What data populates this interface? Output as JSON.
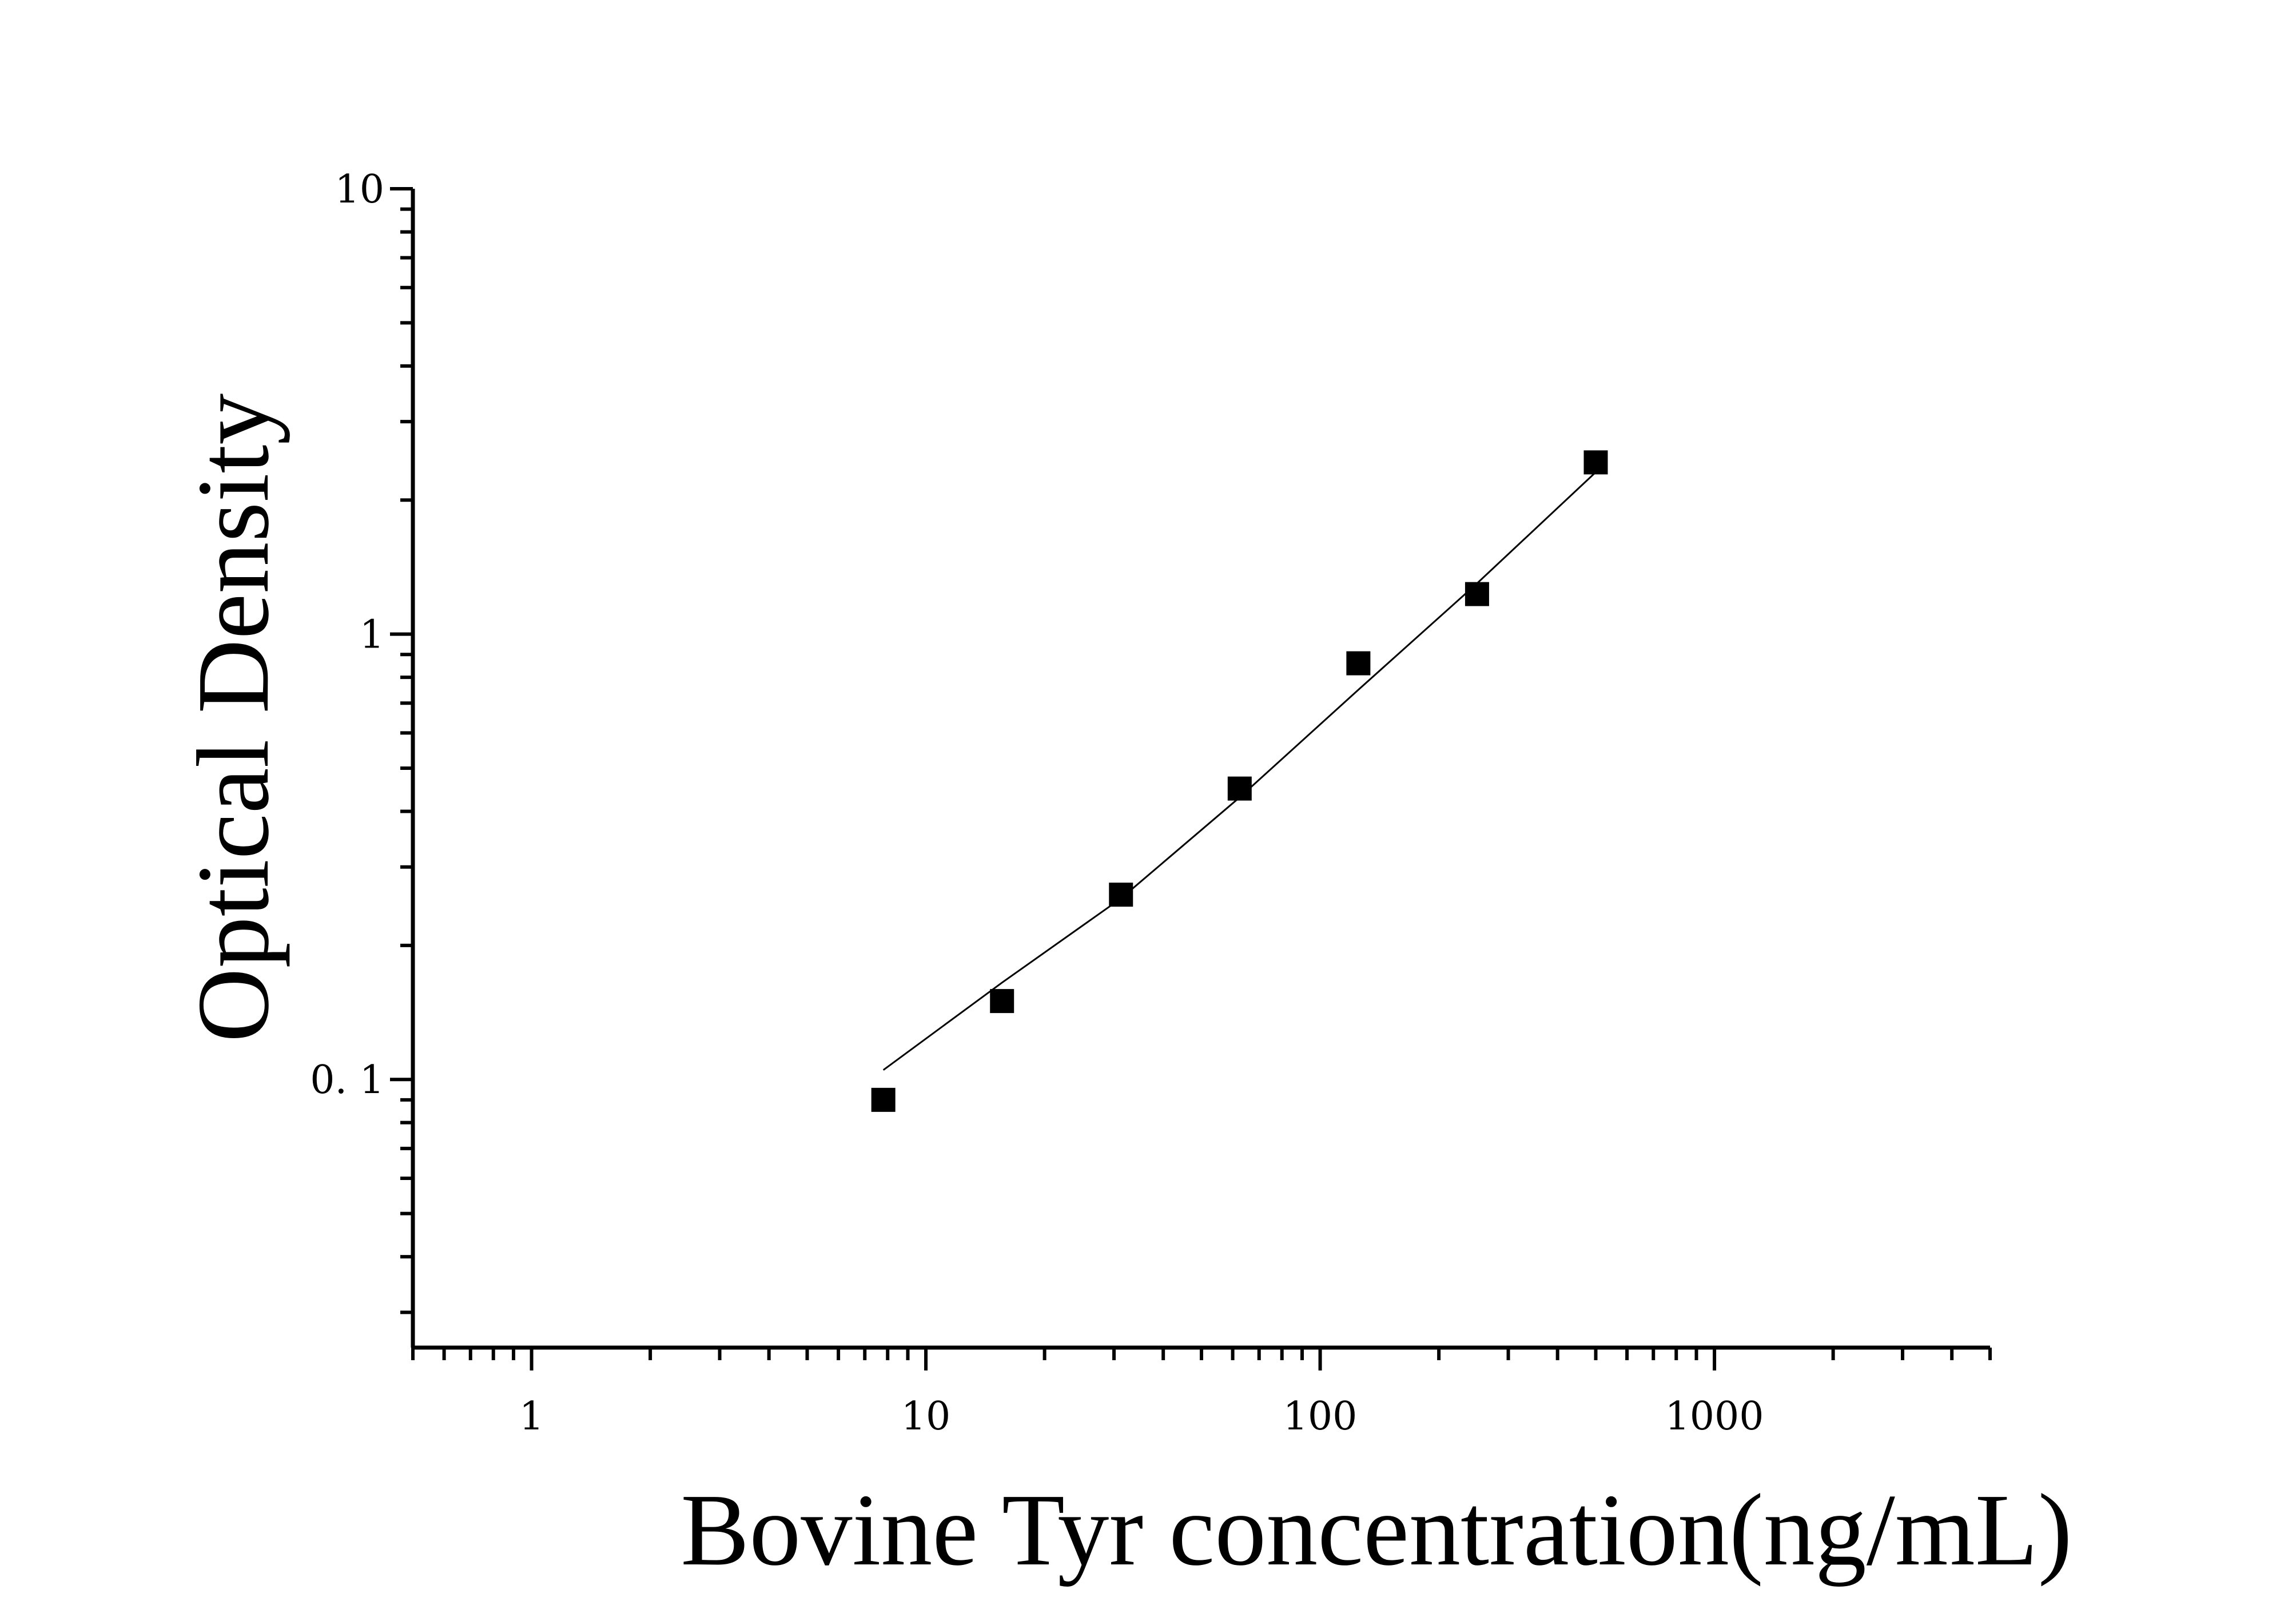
{
  "chart_data": {
    "type": "scatter",
    "xlabel": "Bovine Tyr concentration(ng/mL)",
    "ylabel": "Optical Density",
    "x_scale": "log",
    "y_scale": "log",
    "xlim": [
      0.5,
      5000
    ],
    "ylim": [
      0.025,
      10
    ],
    "x_ticks": [
      {
        "value": 1,
        "label": "1"
      },
      {
        "value": 10,
        "label": "10"
      },
      {
        "value": 100,
        "label": "100"
      },
      {
        "value": 1000,
        "label": "1000"
      }
    ],
    "y_ticks": [
      {
        "value": 0.1,
        "label": "0. 1"
      },
      {
        "value": 1,
        "label": "1"
      },
      {
        "value": 10,
        "label": "10"
      }
    ],
    "grid": false,
    "series": [
      {
        "kind": "points",
        "marker": "square",
        "color": "#000000",
        "x": [
          7.8,
          15.6,
          31.25,
          62.5,
          125,
          250,
          500
        ],
        "y": [
          0.09,
          0.15,
          0.26,
          0.45,
          0.86,
          1.23,
          2.43
        ]
      },
      {
        "kind": "fit-line",
        "color": "#000000",
        "x": [
          7.8,
          15.6,
          31.25,
          62.5,
          125,
          250,
          500
        ],
        "y": [
          0.105,
          0.165,
          0.255,
          0.43,
          0.75,
          1.3,
          2.31
        ]
      }
    ]
  }
}
